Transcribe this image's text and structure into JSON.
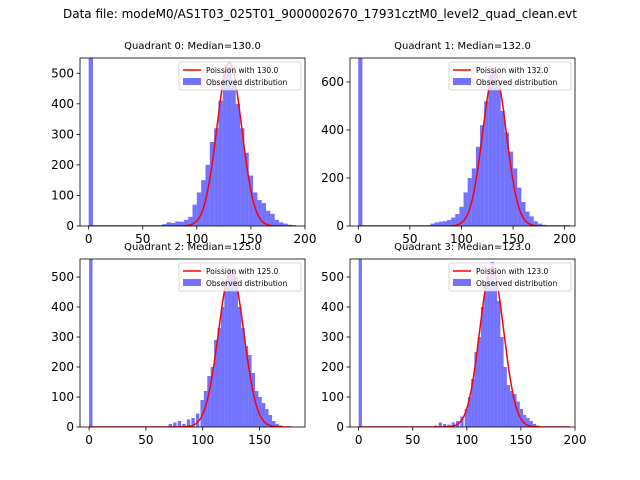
{
  "figure": {
    "suptitle": "Data file: modeM0/AS1T03_025T01_9000002670_17931cztM0_level2_quad_clean.evt"
  },
  "chart_data": [
    {
      "type": "bar",
      "title": "Quadrant 0: Median=130.0",
      "xlim": [
        -8,
        200
      ],
      "ylim": [
        0,
        550
      ],
      "xticks": [
        0,
        50,
        100,
        150,
        200
      ],
      "yticks": [
        0,
        100,
        200,
        300,
        400,
        500
      ],
      "legend": [
        "Poission with 130.0",
        "Observed distribution"
      ],
      "bin_width": 4,
      "bins": [
        [
          0,
          550
        ],
        [
          68,
          6
        ],
        [
          72,
          12
        ],
        [
          76,
          10
        ],
        [
          80,
          15
        ],
        [
          84,
          14
        ],
        [
          88,
          20
        ],
        [
          92,
          30
        ],
        [
          96,
          70
        ],
        [
          100,
          110
        ],
        [
          104,
          150
        ],
        [
          108,
          200
        ],
        [
          112,
          275
        ],
        [
          116,
          320
        ],
        [
          120,
          410
        ],
        [
          124,
          500
        ],
        [
          128,
          520
        ],
        [
          132,
          475
        ],
        [
          136,
          400
        ],
        [
          140,
          320
        ],
        [
          144,
          240
        ],
        [
          148,
          165
        ],
        [
          152,
          110
        ],
        [
          156,
          85
        ],
        [
          160,
          75
        ],
        [
          164,
          50
        ],
        [
          168,
          40
        ],
        [
          172,
          20
        ],
        [
          176,
          12
        ],
        [
          180,
          8
        ],
        [
          184,
          4
        ],
        [
          188,
          2
        ]
      ],
      "curve_mean": 130,
      "curve_peak": 535,
      "curve_range": [
        0,
        192
      ]
    },
    {
      "type": "bar",
      "title": "Quadrant 1: Median=132.0",
      "xlim": [
        -8,
        210
      ],
      "ylim": [
        0,
        700
      ],
      "xticks": [
        0,
        50,
        100,
        150,
        200
      ],
      "yticks": [
        0,
        200,
        400,
        600
      ],
      "legend": [
        "Poission with 132.0",
        "Observed distribution"
      ],
      "bin_width": 4,
      "bins": [
        [
          0,
          700
        ],
        [
          70,
          10
        ],
        [
          74,
          15
        ],
        [
          78,
          18
        ],
        [
          82,
          20
        ],
        [
          86,
          25
        ],
        [
          90,
          35
        ],
        [
          94,
          50
        ],
        [
          98,
          80
        ],
        [
          102,
          140
        ],
        [
          106,
          200
        ],
        [
          110,
          240
        ],
        [
          114,
          330
        ],
        [
          118,
          420
        ],
        [
          122,
          520
        ],
        [
          126,
          630
        ],
        [
          130,
          640
        ],
        [
          134,
          590
        ],
        [
          138,
          480
        ],
        [
          142,
          390
        ],
        [
          146,
          310
        ],
        [
          150,
          240
        ],
        [
          154,
          160
        ],
        [
          158,
          100
        ],
        [
          162,
          60
        ],
        [
          166,
          40
        ],
        [
          170,
          20
        ],
        [
          174,
          10
        ],
        [
          178,
          5
        ]
      ],
      "curve_mean": 132,
      "curve_peak": 640,
      "curve_range": [
        0,
        205
      ]
    },
    {
      "type": "bar",
      "title": "Quadrant 2: Median=125.0",
      "xlim": [
        -8,
        190
      ],
      "ylim": [
        0,
        560
      ],
      "xticks": [
        0,
        50,
        100,
        150
      ],
      "yticks": [
        0,
        100,
        200,
        300,
        400,
        500
      ],
      "legend": [
        "Poission with 125.0",
        "Observed distribution"
      ],
      "bin_width": 3,
      "bins": [
        [
          0,
          560
        ],
        [
          70,
          10
        ],
        [
          74,
          15
        ],
        [
          78,
          20
        ],
        [
          82,
          10
        ],
        [
          86,
          25
        ],
        [
          90,
          30
        ],
        [
          94,
          45
        ],
        [
          98,
          90
        ],
        [
          101,
          120
        ],
        [
          104,
          170
        ],
        [
          107,
          200
        ],
        [
          110,
          290
        ],
        [
          113,
          330
        ],
        [
          116,
          400
        ],
        [
          119,
          480
        ],
        [
          122,
          530
        ],
        [
          125,
          510
        ],
        [
          128,
          500
        ],
        [
          131,
          400
        ],
        [
          134,
          330
        ],
        [
          137,
          270
        ],
        [
          140,
          240
        ],
        [
          143,
          180
        ],
        [
          146,
          120
        ],
        [
          149,
          100
        ],
        [
          152,
          80
        ],
        [
          155,
          60
        ],
        [
          158,
          40
        ],
        [
          161,
          20
        ],
        [
          164,
          10
        ],
        [
          167,
          5
        ]
      ],
      "curve_mean": 125,
      "curve_peak": 520,
      "curve_range": [
        0,
        178
      ]
    },
    {
      "type": "bar",
      "title": "Quadrant 3: Median=123.0",
      "xlim": [
        -8,
        200
      ],
      "ylim": [
        0,
        560
      ],
      "xticks": [
        0,
        50,
        100,
        150,
        200
      ],
      "yticks": [
        0,
        100,
        200,
        300,
        400,
        500
      ],
      "legend": [
        "Poission with 123.0",
        "Observed distribution"
      ],
      "bin_width": 3,
      "bins": [
        [
          0,
          560
        ],
        [
          70,
          5
        ],
        [
          74,
          15
        ],
        [
          78,
          10
        ],
        [
          82,
          8
        ],
        [
          86,
          15
        ],
        [
          90,
          20
        ],
        [
          94,
          35
        ],
        [
          98,
          60
        ],
        [
          101,
          100
        ],
        [
          104,
          160
        ],
        [
          107,
          250
        ],
        [
          110,
          300
        ],
        [
          113,
          400
        ],
        [
          116,
          480
        ],
        [
          119,
          500
        ],
        [
          122,
          550
        ],
        [
          125,
          480
        ],
        [
          128,
          420
        ],
        [
          131,
          300
        ],
        [
          134,
          200
        ],
        [
          137,
          140
        ],
        [
          140,
          120
        ],
        [
          143,
          110
        ],
        [
          146,
          85
        ],
        [
          149,
          60
        ],
        [
          152,
          40
        ],
        [
          155,
          30
        ],
        [
          158,
          20
        ],
        [
          161,
          10
        ],
        [
          164,
          5
        ]
      ],
      "curve_mean": 123,
      "curve_peak": 530,
      "curve_range": [
        0,
        195
      ]
    }
  ]
}
